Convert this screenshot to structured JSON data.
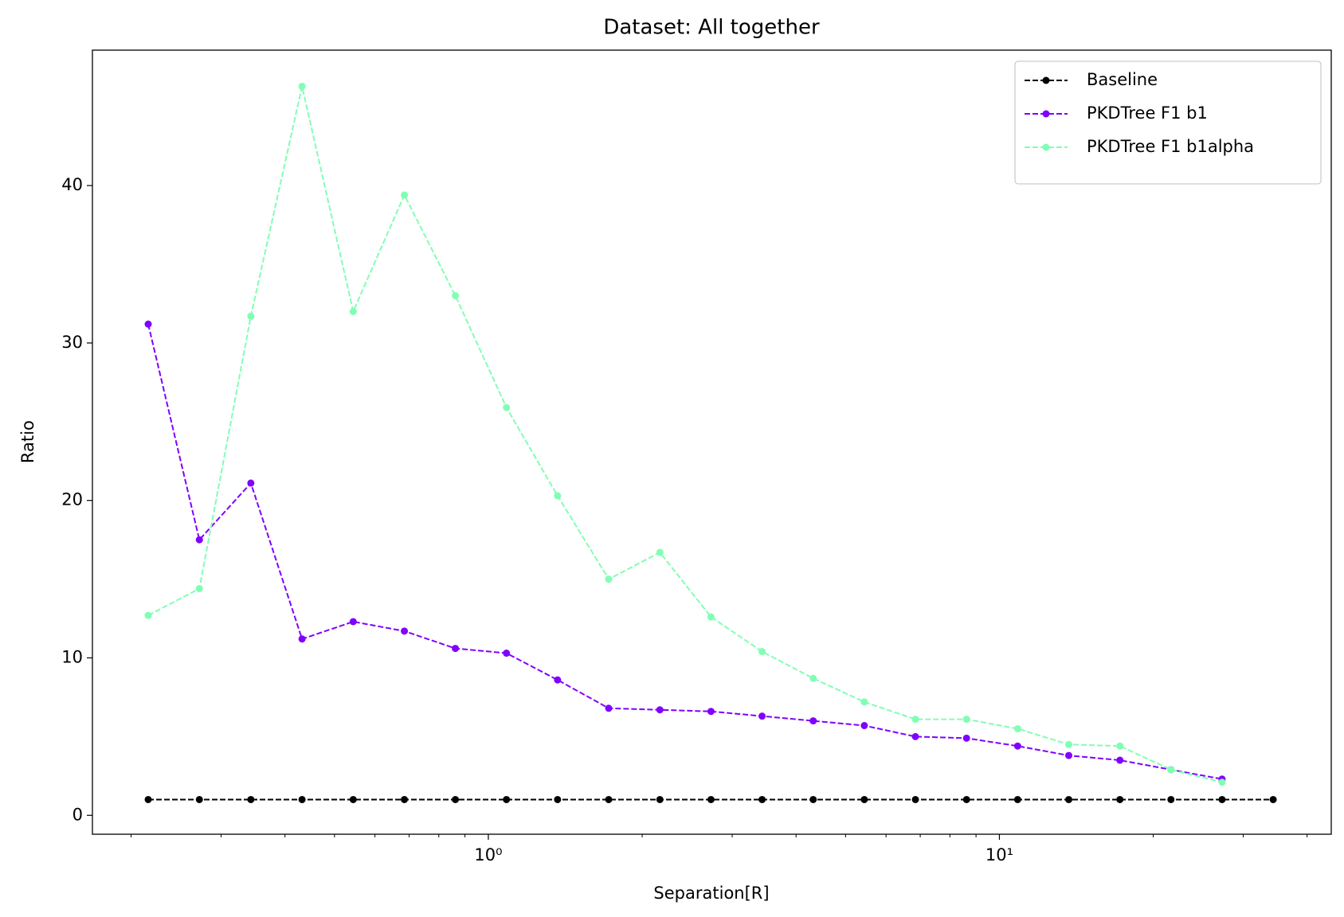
{
  "chart_data": {
    "type": "line",
    "title": "Dataset: All together",
    "xlabel": "Separation[R]",
    "ylabel": "Ratio",
    "xscale": "log",
    "x": [
      0.216,
      0.272,
      0.343,
      0.432,
      0.544,
      0.685,
      0.862,
      1.085,
      1.366,
      1.72,
      2.166,
      2.727,
      3.433,
      4.322,
      5.441,
      6.85,
      8.624,
      10.857,
      13.668,
      17.21,
      21.66,
      27.27,
      34.33
    ],
    "series": [
      {
        "name": "Baseline",
        "color": "#000000",
        "values": [
          1,
          1,
          1,
          1,
          1,
          1,
          1,
          1,
          1,
          1,
          1,
          1,
          1,
          1,
          1,
          1,
          1,
          1,
          1,
          1,
          1,
          1,
          1
        ]
      },
      {
        "name": "PKDTree F1 b1",
        "color": "#8000ff",
        "values": [
          31.2,
          17.5,
          21.1,
          11.2,
          12.3,
          11.7,
          10.6,
          10.3,
          8.6,
          6.8,
          6.7,
          6.6,
          6.3,
          6.0,
          5.7,
          5.0,
          4.9,
          4.4,
          3.8,
          3.5,
          2.9,
          2.3,
          null
        ]
      },
      {
        "name": "PKDTree F1 b1alpha",
        "color": "#80ffb4",
        "values": [
          12.7,
          14.4,
          31.7,
          46.3,
          32.0,
          39.4,
          33.0,
          25.9,
          20.3,
          15.0,
          16.7,
          12.6,
          10.4,
          8.7,
          7.2,
          6.1,
          6.1,
          5.5,
          4.5,
          4.4,
          2.9,
          2.1,
          null
        ]
      }
    ],
    "xlim": [
      0.168,
      44.6
    ],
    "ylim": [
      -1.2,
      48.6
    ],
    "xticks": [
      {
        "value": 1,
        "label": "10⁰"
      },
      {
        "value": 10,
        "label": "10¹"
      }
    ],
    "xminorticks": [
      0.2,
      0.3,
      0.4,
      0.5,
      0.6,
      0.7,
      0.8,
      0.9,
      2,
      3,
      4,
      5,
      6,
      7,
      8,
      9,
      20,
      30,
      40
    ],
    "yticks": [
      0,
      10,
      20,
      30,
      40
    ],
    "grid": false,
    "legend": "upper right"
  }
}
